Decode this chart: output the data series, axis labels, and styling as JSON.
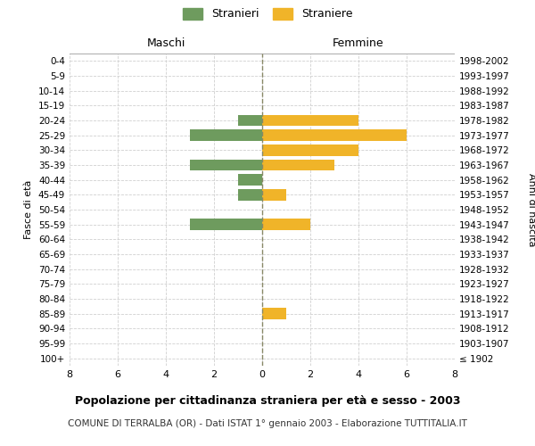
{
  "age_groups": [
    "100+",
    "95-99",
    "90-94",
    "85-89",
    "80-84",
    "75-79",
    "70-74",
    "65-69",
    "60-64",
    "55-59",
    "50-54",
    "45-49",
    "40-44",
    "35-39",
    "30-34",
    "25-29",
    "20-24",
    "15-19",
    "10-14",
    "5-9",
    "0-4"
  ],
  "birth_years": [
    "≤ 1902",
    "1903-1907",
    "1908-1912",
    "1913-1917",
    "1918-1922",
    "1923-1927",
    "1928-1932",
    "1933-1937",
    "1938-1942",
    "1943-1947",
    "1948-1952",
    "1953-1957",
    "1958-1962",
    "1963-1967",
    "1968-1972",
    "1973-1977",
    "1978-1982",
    "1983-1987",
    "1988-1992",
    "1993-1997",
    "1998-2002"
  ],
  "maschi": [
    0,
    0,
    0,
    0,
    0,
    0,
    0,
    0,
    0,
    3,
    0,
    1,
    1,
    3,
    0,
    3,
    1,
    0,
    0,
    0,
    0
  ],
  "femmine": [
    0,
    0,
    0,
    1,
    0,
    0,
    0,
    0,
    0,
    2,
    0,
    1,
    0,
    3,
    4,
    6,
    4,
    0,
    0,
    0,
    0
  ],
  "maschi_color": "#6e9b5e",
  "femmine_color": "#f0b429",
  "title": "Popolazione per cittadinanza straniera per età e sesso - 2003",
  "subtitle": "COMUNE DI TERRALBA (OR) - Dati ISTAT 1° gennaio 2003 - Elaborazione TUTTITALIA.IT",
  "xlabel_left": "Maschi",
  "xlabel_right": "Femmine",
  "ylabel_left": "Fasce di età",
  "ylabel_right": "Anni di nascita",
  "legend_maschi": "Stranieri",
  "legend_femmine": "Straniere",
  "xlim": 8,
  "background_color": "#ffffff",
  "grid_color": "#d0d0d0"
}
